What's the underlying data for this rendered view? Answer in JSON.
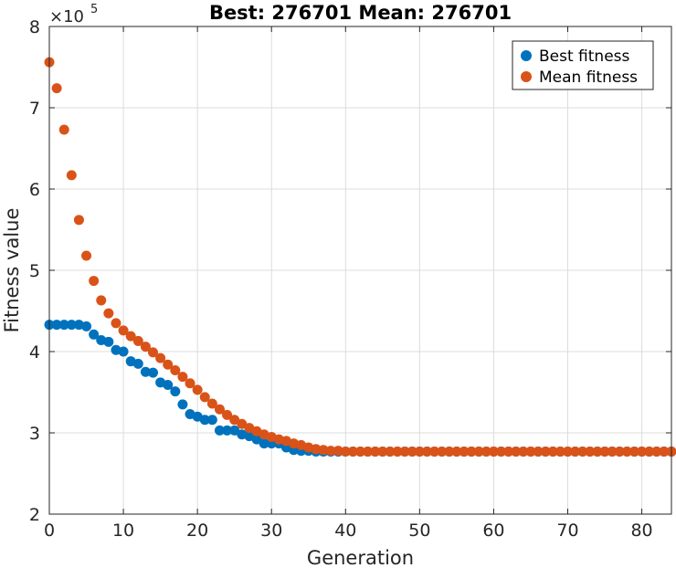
{
  "chart_data": {
    "type": "scatter",
    "title": "Best: 276701 Mean: 276701",
    "xlabel": "Generation",
    "ylabel": "Fitness value",
    "y_exponent_prefix": "×10",
    "y_exponent": "5",
    "xlim": [
      0,
      84
    ],
    "ylim": [
      2,
      8
    ],
    "x_ticks": [
      0,
      10,
      20,
      30,
      40,
      50,
      60,
      70,
      80
    ],
    "y_ticks": [
      2,
      3,
      4,
      5,
      6,
      7,
      8
    ],
    "y_scale_note": "values in units of 10^5",
    "grid": true,
    "legend_position": "top-right",
    "series": [
      {
        "name": "Best fitness",
        "color": "#0072BD",
        "x": [
          0,
          1,
          2,
          3,
          4,
          5,
          6,
          7,
          8,
          9,
          10,
          11,
          12,
          13,
          14,
          15,
          16,
          17,
          18,
          19,
          20,
          21,
          22,
          23,
          24,
          25,
          26,
          27,
          28,
          29,
          30,
          31,
          32,
          33,
          34,
          35,
          36,
          37,
          38,
          39,
          40,
          41,
          42,
          43,
          44,
          45,
          46,
          47,
          48,
          49,
          50,
          51,
          52,
          53,
          54,
          55,
          56,
          57,
          58,
          59,
          60,
          61,
          62,
          63,
          64,
          65,
          66,
          67,
          68,
          69,
          70,
          71,
          72,
          73,
          74,
          75,
          76,
          77,
          78,
          79,
          80,
          81,
          82,
          83,
          84
        ],
        "values": [
          4.33,
          4.33,
          4.33,
          4.33,
          4.33,
          4.31,
          4.21,
          4.14,
          4.12,
          4.02,
          4.0,
          3.88,
          3.85,
          3.75,
          3.74,
          3.62,
          3.59,
          3.51,
          3.35,
          3.23,
          3.2,
          3.16,
          3.16,
          3.03,
          3.03,
          3.03,
          2.98,
          2.96,
          2.92,
          2.87,
          2.87,
          2.87,
          2.82,
          2.79,
          2.78,
          2.78,
          2.77,
          2.77,
          2.77,
          2.77,
          2.77,
          2.77,
          2.77,
          2.77,
          2.77,
          2.77,
          2.77,
          2.77,
          2.77,
          2.77,
          2.77,
          2.77,
          2.77,
          2.77,
          2.77,
          2.77,
          2.77,
          2.77,
          2.77,
          2.77,
          2.77,
          2.77,
          2.77,
          2.77,
          2.77,
          2.77,
          2.77,
          2.77,
          2.77,
          2.77,
          2.77,
          2.77,
          2.77,
          2.77,
          2.77,
          2.77,
          2.77,
          2.77,
          2.77,
          2.77,
          2.77,
          2.77,
          2.77,
          2.77,
          2.77
        ]
      },
      {
        "name": "Mean fitness",
        "color": "#D95319",
        "x": [
          0,
          1,
          2,
          3,
          4,
          5,
          6,
          7,
          8,
          9,
          10,
          11,
          12,
          13,
          14,
          15,
          16,
          17,
          18,
          19,
          20,
          21,
          22,
          23,
          24,
          25,
          26,
          27,
          28,
          29,
          30,
          31,
          32,
          33,
          34,
          35,
          36,
          37,
          38,
          39,
          40,
          41,
          42,
          43,
          44,
          45,
          46,
          47,
          48,
          49,
          50,
          51,
          52,
          53,
          54,
          55,
          56,
          57,
          58,
          59,
          60,
          61,
          62,
          63,
          64,
          65,
          66,
          67,
          68,
          69,
          70,
          71,
          72,
          73,
          74,
          75,
          76,
          77,
          78,
          79,
          80,
          81,
          82,
          83,
          84
        ],
        "values": [
          7.56,
          7.24,
          6.73,
          6.17,
          5.62,
          5.18,
          4.87,
          4.63,
          4.47,
          4.35,
          4.26,
          4.19,
          4.13,
          4.06,
          3.99,
          3.92,
          3.84,
          3.77,
          3.69,
          3.61,
          3.53,
          3.44,
          3.36,
          3.29,
          3.22,
          3.16,
          3.11,
          3.06,
          3.02,
          2.98,
          2.95,
          2.92,
          2.9,
          2.87,
          2.85,
          2.82,
          2.8,
          2.79,
          2.78,
          2.78,
          2.77,
          2.77,
          2.77,
          2.77,
          2.77,
          2.77,
          2.77,
          2.77,
          2.77,
          2.77,
          2.77,
          2.77,
          2.77,
          2.77,
          2.77,
          2.77,
          2.77,
          2.77,
          2.77,
          2.77,
          2.77,
          2.77,
          2.77,
          2.77,
          2.77,
          2.77,
          2.77,
          2.77,
          2.77,
          2.77,
          2.77,
          2.77,
          2.77,
          2.77,
          2.77,
          2.77,
          2.77,
          2.77,
          2.77,
          2.77,
          2.77,
          2.77,
          2.77,
          2.77,
          2.77
        ]
      }
    ]
  }
}
